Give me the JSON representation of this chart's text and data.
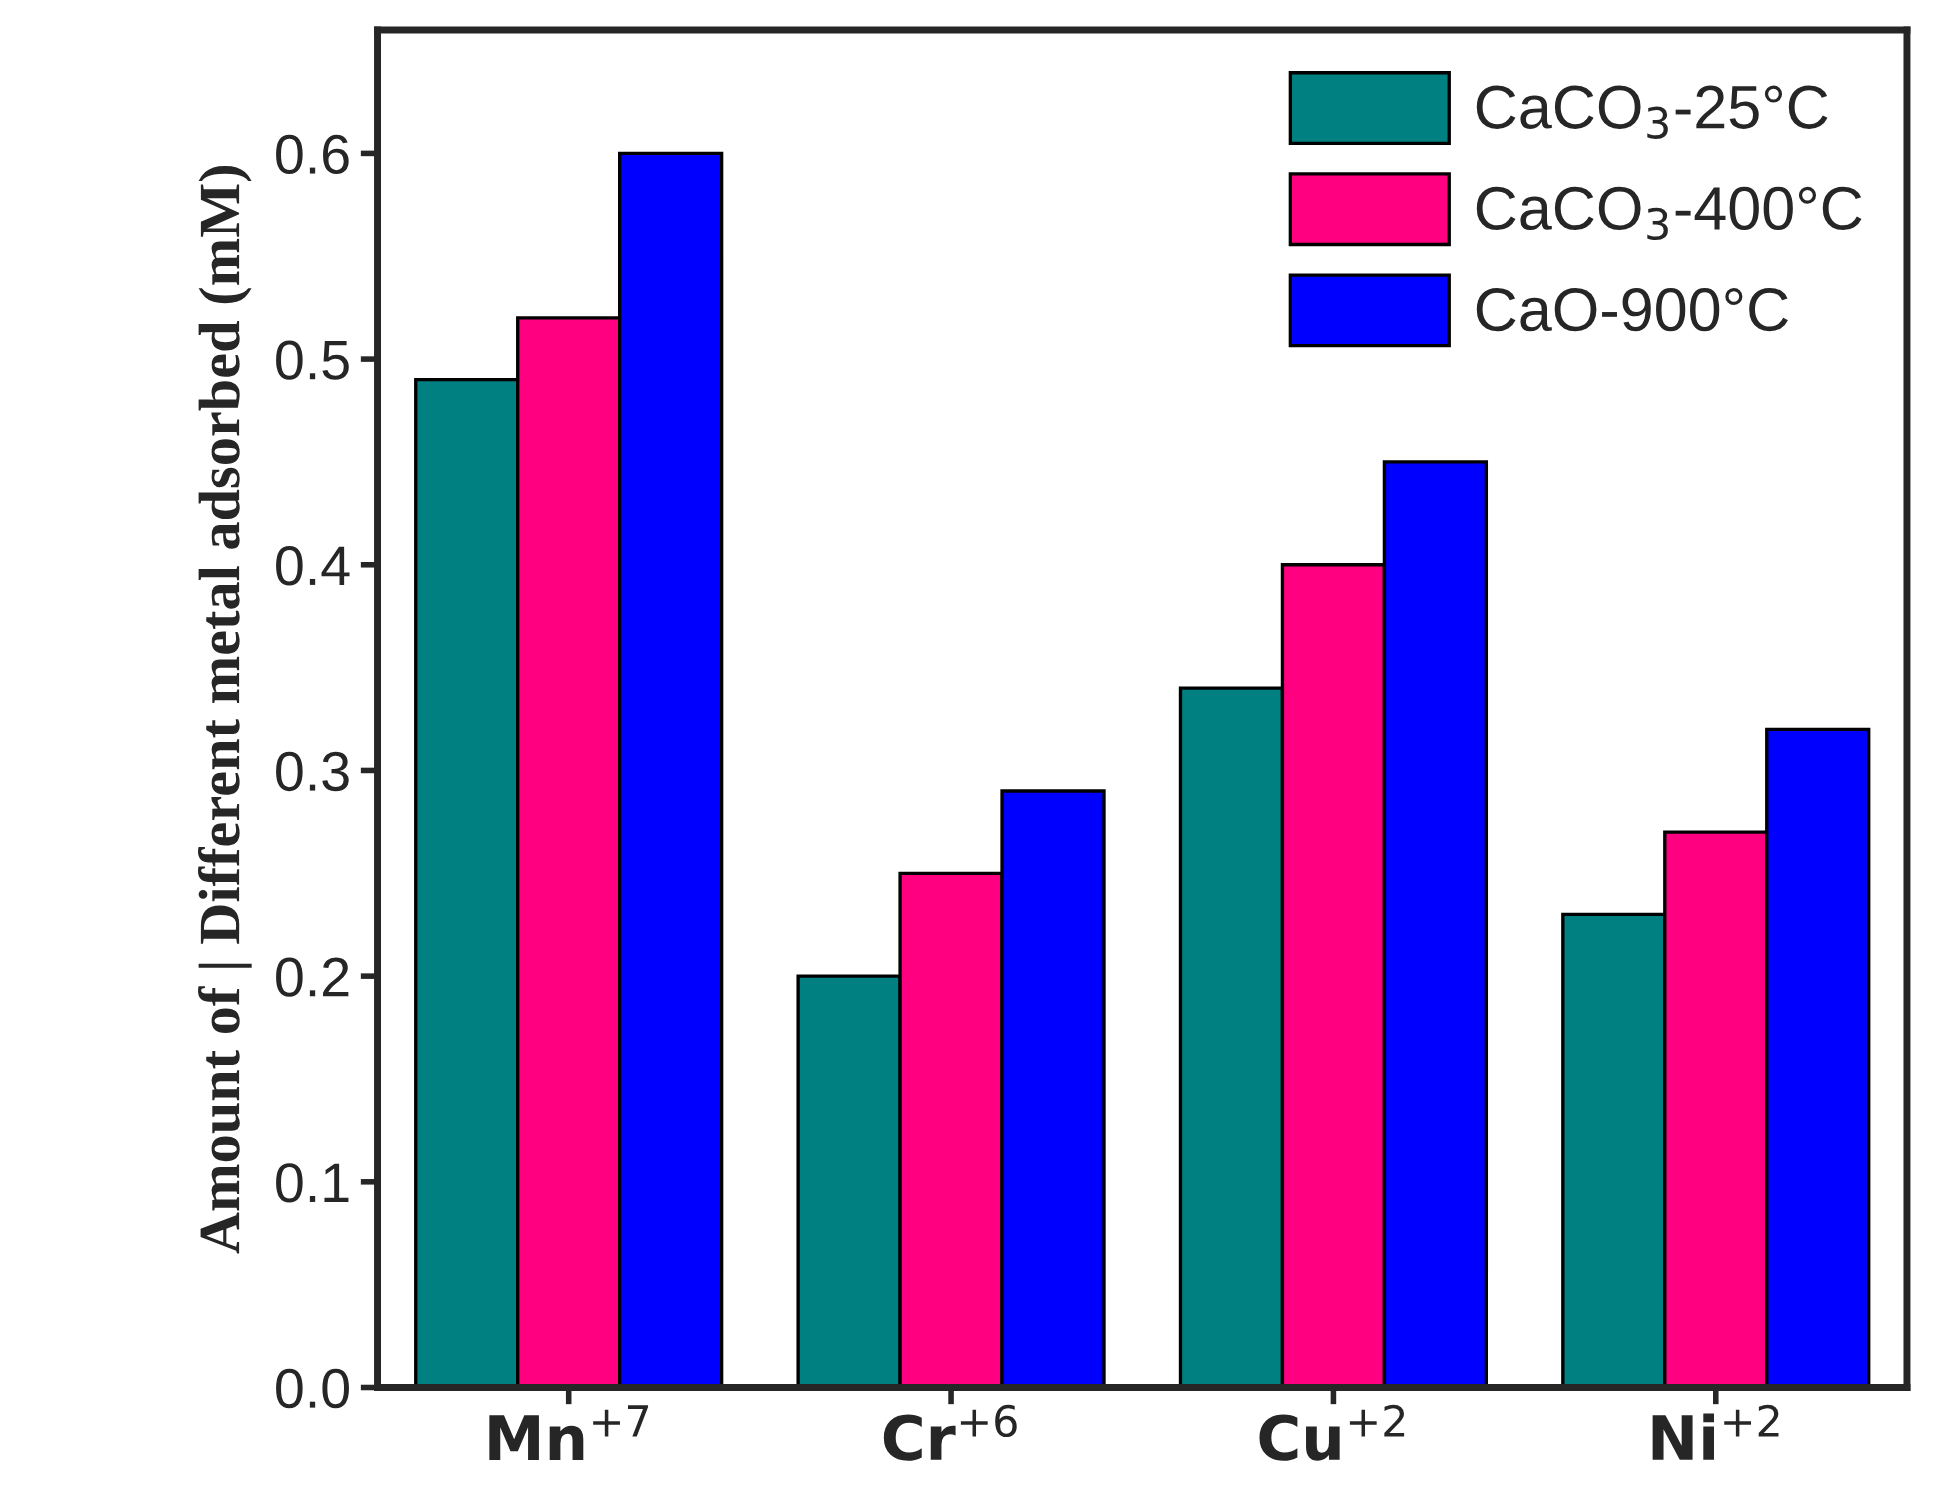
{
  "chart_data": {
    "type": "bar",
    "ylabel": "Amount of | Different metal adsorbed (mM)",
    "categories": [
      "Mn$^{+7}$",
      "Cr$^{+6}$",
      "Cu$^{+2}$",
      "Ni$^{+2}$"
    ],
    "series": [
      {
        "name": "CaCO$_{3}$-25°C",
        "color": "#008080",
        "values": [
          0.49,
          0.2,
          0.34,
          0.23
        ]
      },
      {
        "name": "CaCO$_{3}$-400°C",
        "color": "#ff0080",
        "values": [
          0.52,
          0.25,
          0.4,
          0.27
        ]
      },
      {
        "name": "CaO-900°C",
        "color": "#0000ff",
        "values": [
          0.6,
          0.29,
          0.45,
          0.32
        ]
      }
    ],
    "ylim": [
      0,
      0.66
    ],
    "yticks": [
      {
        "value": 0,
        "label": "0.0"
      },
      0.1,
      0.2,
      0.3,
      0.4,
      0.5,
      0.6
    ],
    "grid": false,
    "legend": "top right"
  }
}
